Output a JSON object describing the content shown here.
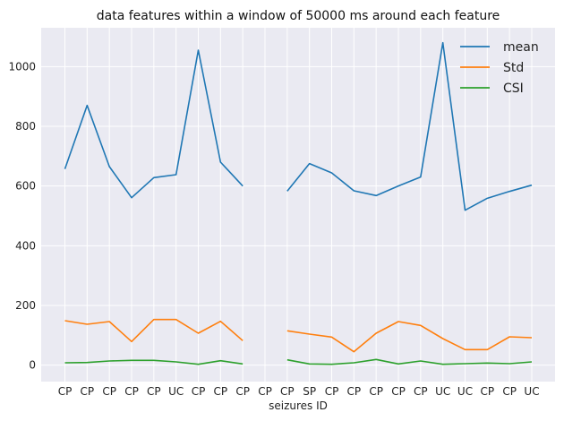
{
  "chart_data": {
    "type": "line",
    "title": "data features within a window of 50000 ms around each feature",
    "xlabel": "seizures ID",
    "ylabel": "",
    "categories": [
      "CP",
      "CP",
      "CP",
      "CP",
      "CP",
      "UC",
      "CP",
      "CP",
      "CP",
      "CP",
      "CP",
      "SP",
      "CP",
      "CP",
      "CP",
      "CP",
      "CP",
      "UC",
      "UC",
      "CP",
      "CP",
      "UC"
    ],
    "ylim": [
      -55,
      1130
    ],
    "yticks": [
      0,
      200,
      400,
      600,
      800,
      1000
    ],
    "grid": true,
    "legend_position": "top-right",
    "series": [
      {
        "name": "mean",
        "color": "#1f77b4",
        "values": [
          657,
          870,
          665,
          561,
          628,
          638,
          1055,
          680,
          600,
          null,
          583,
          675,
          644,
          584,
          568,
          600,
          630,
          1080,
          519,
          559,
          582,
          603
        ]
      },
      {
        "name": "Std",
        "color": "#ff7f0e",
        "values": [
          149,
          137,
          146,
          79,
          153,
          153,
          107,
          147,
          82,
          null,
          115,
          104,
          94,
          45,
          107,
          146,
          133,
          89,
          52,
          52,
          95,
          92
        ]
      },
      {
        "name": "CSI",
        "color": "#2ca02c",
        "values": [
          8,
          9,
          14,
          16,
          16,
          11,
          3,
          15,
          4,
          null,
          18,
          4,
          3,
          8,
          19,
          4,
          14,
          3,
          5,
          7,
          5,
          11
        ]
      }
    ]
  }
}
